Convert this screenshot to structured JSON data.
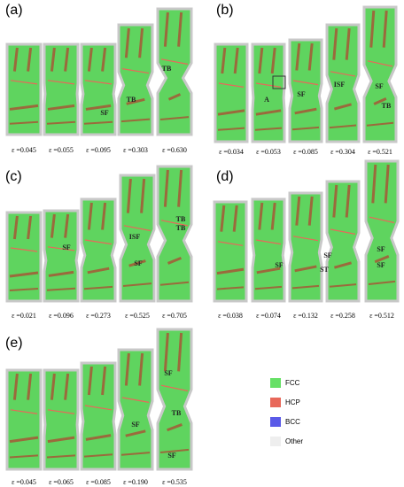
{
  "panels": [
    {
      "label": "(a)",
      "strains": [
        "ε =0.045",
        "ε =0.055",
        "ε =0.095",
        "ε =0.303",
        "ε =0.630"
      ],
      "annotations": [
        "SF",
        "TB",
        "TB"
      ]
    },
    {
      "label": "(b)",
      "strains": [
        "ε =0.034",
        "ε =0.053",
        "ε =0.085",
        "ε =0.304",
        "ε =0.521"
      ],
      "annotations": [
        "A",
        "SF",
        "ISF",
        "SF",
        "TB"
      ]
    },
    {
      "label": "(c)",
      "strains": [
        "ε =0.021",
        "ε =0.096",
        "ε =0.273",
        "ε =0.525",
        "ε =0.705"
      ],
      "annotations": [
        "SF",
        "ISF",
        "SF",
        "TB",
        "TB"
      ]
    },
    {
      "label": "(d)",
      "strains": [
        "ε =0.038",
        "ε =0.074",
        "ε =0.132",
        "ε =0.258",
        "ε =0.512"
      ],
      "annotations": [
        "SF",
        "SF",
        "ST",
        "SF",
        "SF"
      ]
    },
    {
      "label": "(e)",
      "strains": [
        "ε =0.045",
        "ε =0.065",
        "ε =0.085",
        "ε =0.190",
        "ε =0.535"
      ],
      "annotations": [
        "SF",
        "SF",
        "TB",
        "SF"
      ]
    }
  ],
  "legend": [
    "FCC",
    "HCP",
    "BCC",
    "Other"
  ]
}
